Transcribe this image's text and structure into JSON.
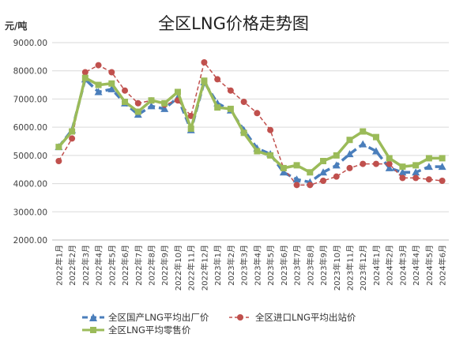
{
  "chart_data": {
    "type": "line",
    "title": "全区LNG价格走势图",
    "ylabel": "元/吨",
    "ylim": [
      2000,
      9000
    ],
    "yticks": [
      "2000.00",
      "3000.00",
      "4000.00",
      "5000.00",
      "6000.00",
      "7000.00",
      "8000.00",
      "9000.00"
    ],
    "categories": [
      "2022年1月",
      "2022年2月",
      "2022年3月",
      "2022年4月",
      "2022年5月",
      "2022年6月",
      "2022年7月",
      "2022年8月",
      "2022年9月",
      "2022年10月",
      "2022年11月",
      "2022年12月",
      "2023年1月",
      "2023年2月",
      "2023年3月",
      "2023年4月",
      "2023年5月",
      "2023年6月",
      "2023年7月",
      "2023年8月",
      "2023年9月",
      "2023年10月",
      "2023年11月",
      "2023年12月",
      "2024年1月",
      "2024年2月",
      "2024年3月",
      "2024年4月",
      "2024年5月",
      "2024年6月"
    ],
    "grid": true,
    "legend_position": "bottom",
    "series": [
      {
        "name": "全区国产LNG平均出厂价",
        "color": "#4a7ebb",
        "style": "dashed-triangle",
        "values": [
          5300,
          5900,
          7700,
          7250,
          7350,
          6850,
          6450,
          6750,
          6650,
          7050,
          5900,
          7600,
          6850,
          6600,
          5900,
          5250,
          5050,
          4400,
          4150,
          4050,
          4400,
          4650,
          5050,
          5400,
          5150,
          4550,
          4400,
          4400,
          4600,
          4600
        ]
      },
      {
        "name": "全区进口LNG平均出站价",
        "color": "#c0504d",
        "style": "dashed-circle",
        "values": [
          4800,
          5600,
          7950,
          8200,
          7950,
          7300,
          6850,
          6950,
          6800,
          6950,
          6400,
          8300,
          7700,
          7300,
          6900,
          6500,
          5900,
          4550,
          3950,
          3950,
          4100,
          4250,
          4550,
          4700,
          4700,
          4700,
          4200,
          4200,
          4150,
          4100
        ]
      },
      {
        "name": "全区LNG平均零售价",
        "color": "#9bbb59",
        "style": "solid-square",
        "values": [
          5300,
          5850,
          7750,
          7500,
          7550,
          6900,
          6550,
          6950,
          6850,
          7250,
          5950,
          7650,
          6700,
          6650,
          5800,
          5150,
          5000,
          4550,
          4650,
          4400,
          4800,
          5000,
          5550,
          5850,
          5650,
          4900,
          4600,
          4650,
          4900,
          4900
        ]
      }
    ]
  }
}
